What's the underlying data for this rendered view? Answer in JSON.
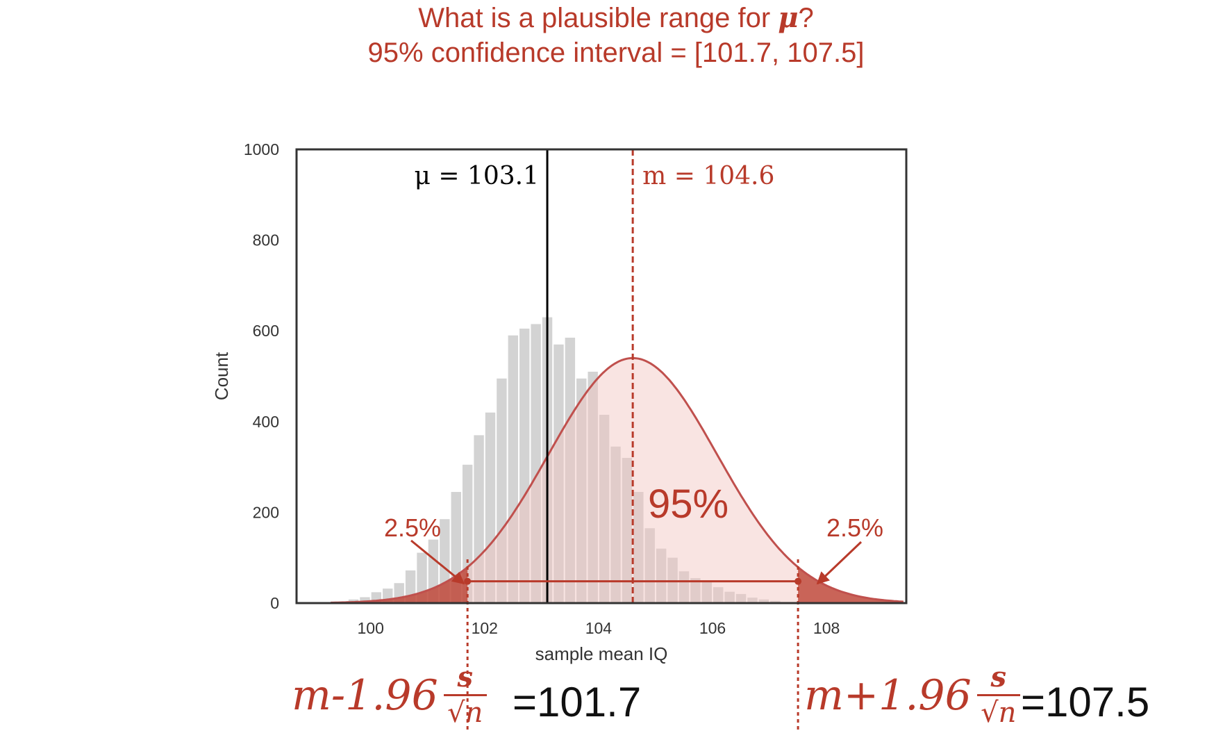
{
  "header": {
    "question_prefix": "What is a plausible range for ",
    "question_symbol": "μ",
    "question_suffix": "?",
    "interval_text": "95% confidence interval = [101.7, 107.5]"
  },
  "chart_data": {
    "type": "bar",
    "xlabel": "sample mean IQ",
    "ylabel": "Count",
    "xlim": [
      98.7,
      109.4
    ],
    "ylim": [
      0,
      1000
    ],
    "xticks": [
      100,
      102,
      104,
      106,
      108
    ],
    "yticks": [
      0,
      200,
      400,
      600,
      800,
      1000
    ],
    "grid": false,
    "histogram": {
      "bin_width": 0.2,
      "bin_start": 99.6,
      "counts": [
        8,
        13,
        24,
        32,
        44,
        72,
        111,
        140,
        185,
        245,
        305,
        370,
        420,
        495,
        590,
        605,
        615,
        630,
        570,
        585,
        495,
        510,
        415,
        345,
        320,
        245,
        165,
        120,
        100,
        70,
        55,
        50,
        35,
        25,
        20,
        12,
        8,
        5
      ]
    },
    "mu_line": {
      "x": 103.1,
      "label": "μ = 103.1",
      "color": "#000000"
    },
    "m_line": {
      "x": 104.6,
      "label": "m = 104.6",
      "color": "#b83a2a"
    },
    "normal_curve": {
      "mean": 104.6,
      "sd": 1.48,
      "peak": 540,
      "color": "#c0504d"
    },
    "interval": {
      "low": 101.7,
      "high": 107.5
    },
    "annotations": {
      "center": "95%",
      "left_tail": "2.5%",
      "right_tail": "2.5%"
    },
    "colors": {
      "bar": "#d3d3d3",
      "accent": "#b83a2a",
      "fill": "#f2c4be"
    }
  },
  "formulas": {
    "lower": {
      "coef": "m-1.96",
      "num": "s",
      "den": "√n",
      "result": "=101.7"
    },
    "upper": {
      "coef": "m+1.96",
      "num": "s",
      "den": "√n",
      "result": "=107.5"
    }
  }
}
